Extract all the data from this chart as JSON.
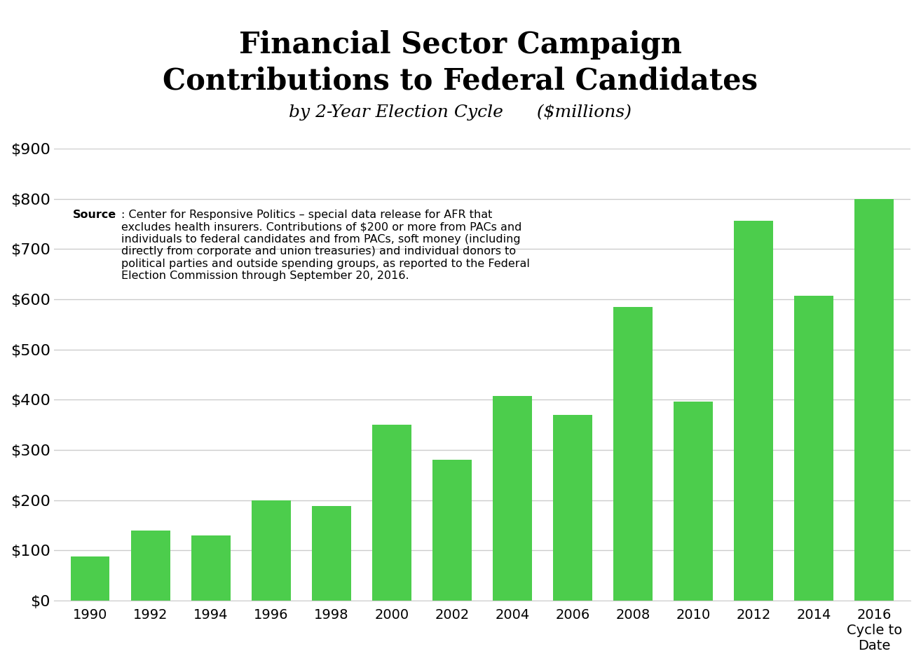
{
  "years": [
    "1990",
    "1992",
    "1994",
    "1996",
    "1998",
    "2000",
    "2002",
    "2004",
    "2006",
    "2008",
    "2010",
    "2012",
    "2014",
    "2016\nCycle to\nDate"
  ],
  "values": [
    88,
    140,
    130,
    200,
    188,
    350,
    280,
    408,
    370,
    585,
    397,
    757,
    607,
    800
  ],
  "bar_color": "#4ccd4c",
  "hatch_indices": [
    0,
    2,
    4,
    6,
    8,
    10,
    12
  ],
  "title_line1": "Financial Sector Campaign",
  "title_line2": "Contributions to Federal Candidates",
  "title_line3": "by 2-Year Election Cycle      ($millions)",
  "ylim": [
    0,
    900
  ],
  "yticks": [
    0,
    100,
    200,
    300,
    400,
    500,
    600,
    700,
    800,
    900
  ],
  "ytick_labels": [
    "$0",
    "$100",
    "$200",
    "$300",
    "$400",
    "$500",
    "$600",
    "$700",
    "$800",
    "$900"
  ],
  "source_bold": "Source",
  "source_rest": ": Center for Responsive Politics – special data release for AFR that\nexcludes health insurers. Contributions of $200 or more from PACs and\nindividuals to federal candidates and from PACs, soft money (including\ndirectly from corporate and union treasuries) and individual donors to\npolitical parties and outside spending groups, as reported to the Federal\nElection Commission through September 20, 2016.",
  "background_color": "#ffffff",
  "grid_color": "#cccccc"
}
